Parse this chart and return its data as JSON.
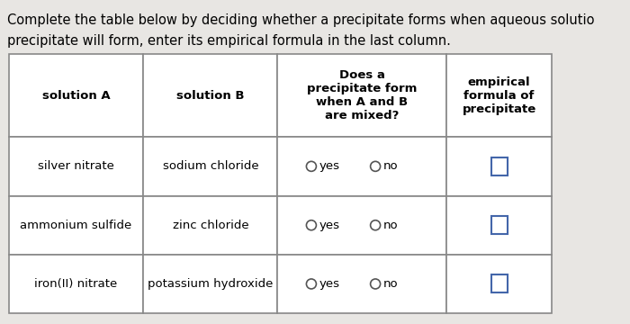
{
  "title_line1": "Complete the table below by deciding whether a precipitate forms when aqueous solutio",
  "title_line2": "precipitate will form, enter its empirical formula in the last column.",
  "bg_color": "#e8e6e3",
  "table_bg": "#ffffff",
  "border_color": "#999999",
  "col_headers": [
    "solution A",
    "solution B",
    "Does a\nprecipitate form\nwhen A and B\nare mixed?",
    "empirical\nformula of\nprecipitate"
  ],
  "rows": [
    [
      "silver nitrate",
      "sodium chloride"
    ],
    [
      "ammonium sulfide",
      "zinc chloride"
    ],
    [
      "iron(II) nitrate",
      "potassium hydroxide"
    ]
  ],
  "title_fontsize": 10.5,
  "header_fontsize": 9.5,
  "cell_fontsize": 9.5
}
